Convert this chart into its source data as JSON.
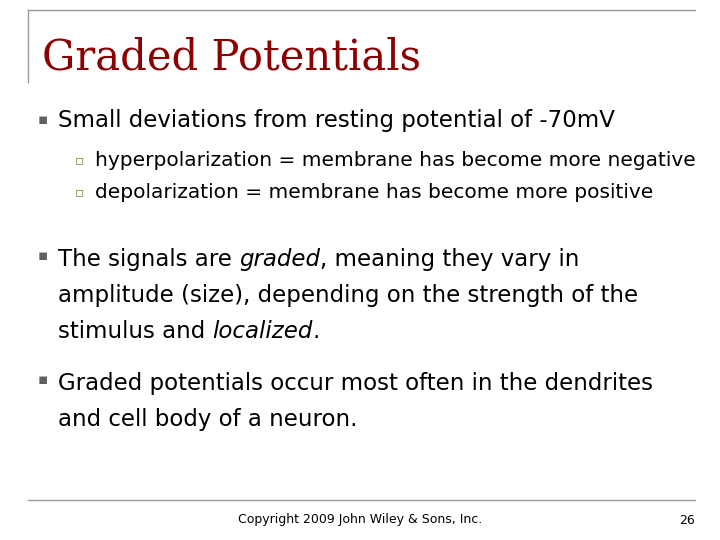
{
  "title": "Graded Potentials",
  "title_color": "#8B0000",
  "title_fontsize": 30,
  "background_color": "#FFFFFF",
  "border_color": "#999999",
  "bullet_color": "#606060",
  "sub_bullet_color": "#8B8B40",
  "bullet1": "Small deviations from resting potential of -70mV",
  "sub_bullet1": "hyperpolarization = membrane has become more negative",
  "sub_bullet2": "depolarization = membrane has become more positive",
  "bullet3": "Graded potentials occur most often in the dendrites\nand cell body of a neuron.",
  "footer": "Copyright 2009 John Wiley & Sons, Inc.",
  "page_number": "26",
  "footer_fontsize": 9,
  "body_fontsize": 16.5,
  "sub_fontsize": 14.5,
  "title_line_color": "#AAAAAA"
}
